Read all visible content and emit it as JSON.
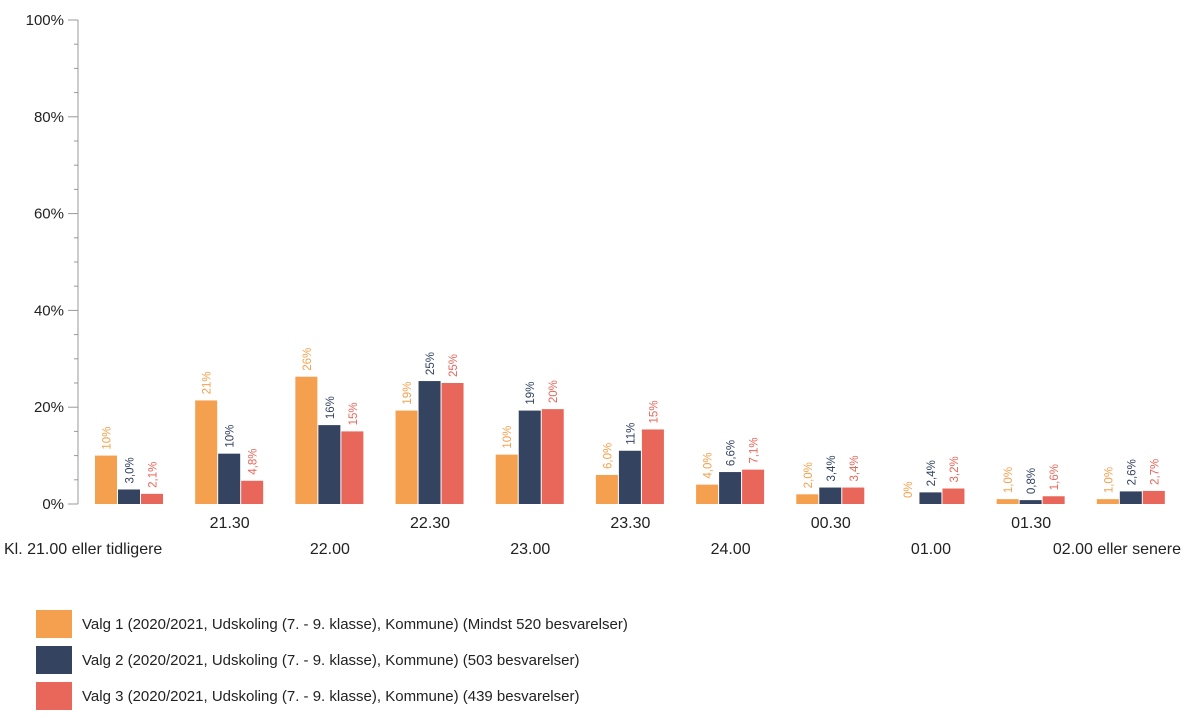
{
  "chart_data": {
    "type": "bar",
    "categories": [
      "Kl. 21.00 eller tidligere",
      "21.30",
      "22.00",
      "22.30",
      "23.00",
      "23.30",
      "24.00",
      "00.30",
      "01.00",
      "01.30",
      "02.00 eller senere"
    ],
    "series": [
      {
        "name": "Valg 1 (2020/2021, Udskoling (7. - 9. klasse), Kommune) (Mindst 520 besvarelser)",
        "color": "#F5A04E",
        "values": [
          10,
          21.4,
          26.3,
          19.3,
          10.2,
          6.0,
          4.0,
          2.0,
          0,
          1.0,
          1.0
        ],
        "labels": [
          "10%",
          "21%",
          "26%",
          "19%",
          "10%",
          "6,0%",
          "4,0%",
          "2,0%",
          "0%",
          "1,0%",
          "1,0%"
        ]
      },
      {
        "name": "Valg 2 (2020/2021, Udskoling (7. - 9. klasse), Kommune) (503 besvarelser)",
        "color": "#34435F",
        "values": [
          3.0,
          10.4,
          16.3,
          25.4,
          19.3,
          11.0,
          6.6,
          3.4,
          2.4,
          0.8,
          2.6
        ],
        "labels": [
          "3,0%",
          "10%",
          "16%",
          "25%",
          "19%",
          "11%",
          "6,6%",
          "3,4%",
          "2,4%",
          "0,8%",
          "2,6%"
        ]
      },
      {
        "name": "Valg 3 (2020/2021, Udskoling (7. - 9. klasse), Kommune) (439 besvarelser)",
        "color": "#E8675A",
        "values": [
          2.1,
          4.8,
          15.0,
          25.0,
          19.6,
          15.4,
          7.1,
          3.4,
          3.2,
          1.6,
          2.7
        ],
        "labels": [
          "2,1%",
          "4,8%",
          "15%",
          "25%",
          "20%",
          "15%",
          "7,1%",
          "3,4%",
          "3,2%",
          "1,6%",
          "2,7%"
        ]
      }
    ],
    "y_ticks": [
      "0%",
      "20%",
      "40%",
      "60%",
      "80%",
      "100%"
    ],
    "ylim": [
      0,
      100
    ],
    "legend_position": "bottom"
  }
}
